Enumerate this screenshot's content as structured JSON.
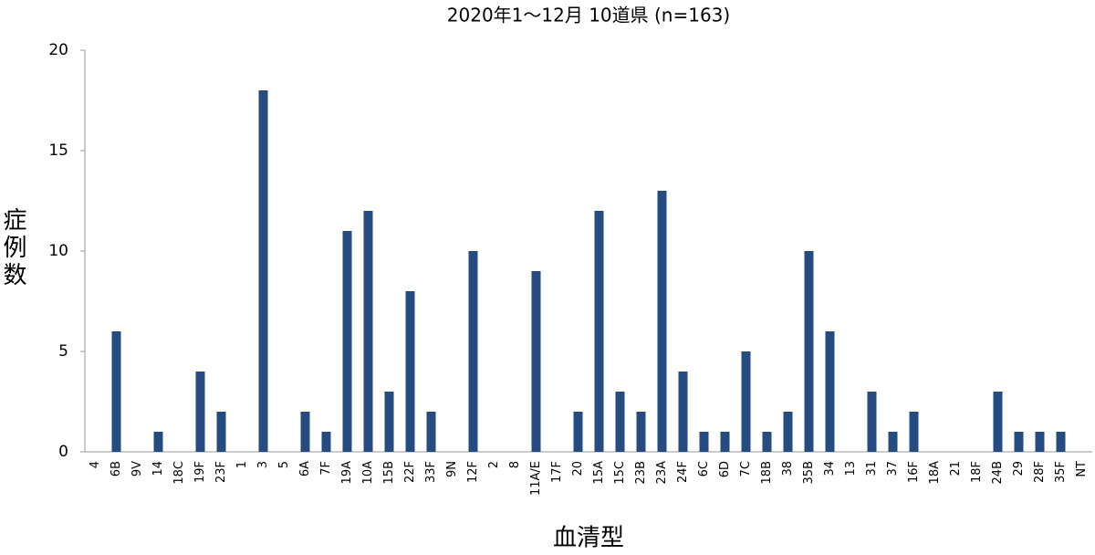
{
  "chart_data": {
    "type": "bar",
    "title": "2020年1～12月 10道県 (n=163)",
    "x_label": "血清型",
    "y_label": "症例数",
    "categories": [
      "4",
      "6B",
      "9V",
      "14",
      "18C",
      "19F",
      "23F",
      "1",
      "3",
      "5",
      "6A",
      "7F",
      "19A",
      "10A",
      "15B",
      "22F",
      "33F",
      "9N",
      "12F",
      "2",
      "8",
      "11A/E",
      "17F",
      "20",
      "15A",
      "15C",
      "23B",
      "23A",
      "24F",
      "6C",
      "6D",
      "7C",
      "18B",
      "38",
      "35B",
      "34",
      "13",
      "31",
      "37",
      "16F",
      "18A",
      "21",
      "18F",
      "24B",
      "29",
      "28F",
      "35F",
      "NT"
    ],
    "values": [
      0,
      6,
      0,
      1,
      0,
      4,
      2,
      0,
      18,
      0,
      2,
      1,
      11,
      12,
      3,
      8,
      2,
      0,
      10,
      0,
      0,
      9,
      0,
      2,
      12,
      3,
      2,
      13,
      4,
      1,
      1,
      5,
      1,
      2,
      10,
      6,
      0,
      3,
      1,
      2,
      0,
      0,
      0,
      3,
      1,
      1,
      1,
      0
    ],
    "color": "#254b7f",
    "ylim": [
      0,
      20
    ],
    "yticks": [
      0,
      5,
      10,
      15,
      20
    ],
    "grid": false
  }
}
